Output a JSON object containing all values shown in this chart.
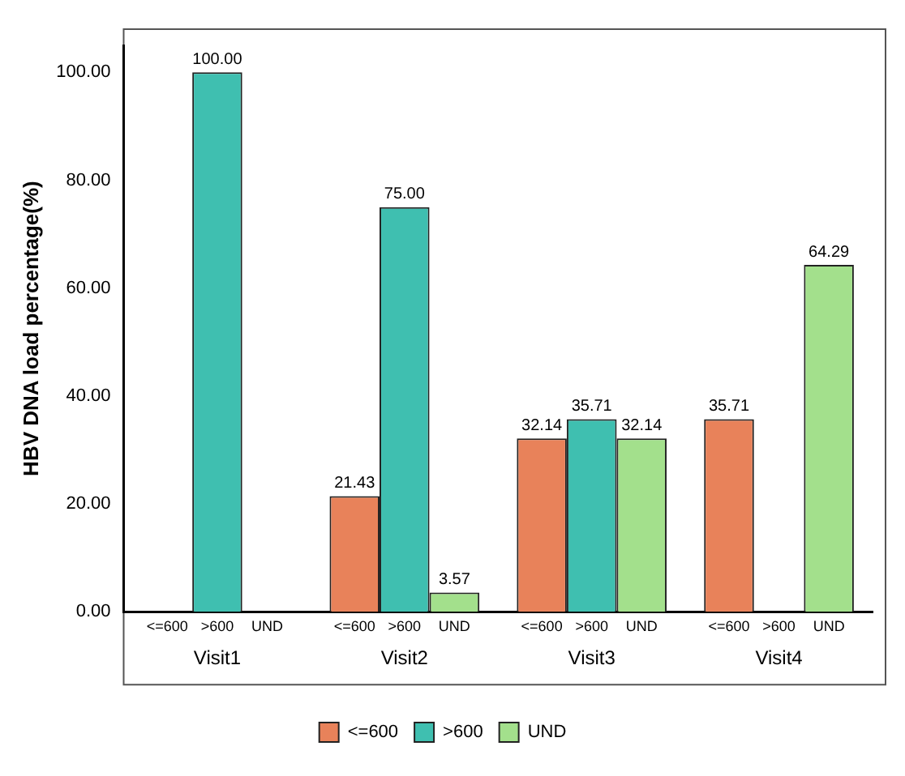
{
  "chart_data": {
    "type": "bar",
    "ylabel": "HBV DNA load percentage(%)",
    "categories": [
      "Visit1",
      "Visit2",
      "Visit3",
      "Visit4"
    ],
    "series": [
      {
        "name": "<=600",
        "color": "#e8825a",
        "values": [
          0,
          21.43,
          32.14,
          35.71
        ],
        "value_labels": [
          null,
          "21.43",
          "32.14",
          "35.71"
        ]
      },
      {
        "name": ">600",
        "color": "#3fbfb0",
        "values": [
          100,
          75,
          35.71,
          0
        ],
        "value_labels": [
          "100.00",
          "75.00",
          "35.71",
          null
        ]
      },
      {
        "name": "UND",
        "color": "#a3e08c",
        "values": [
          0,
          3.57,
          32.14,
          64.29
        ],
        "value_labels": [
          null,
          "3.57",
          "32.14",
          "64.29"
        ]
      }
    ],
    "ylim": [
      0,
      105
    ],
    "yticks": [
      {
        "value": 0,
        "label": "0.00"
      },
      {
        "value": 20,
        "label": "20.00"
      },
      {
        "value": 40,
        "label": "40.00"
      },
      {
        "value": 60,
        "label": "60.00"
      },
      {
        "value": 80,
        "label": "80.00"
      },
      {
        "value": 100,
        "label": "100.00"
      }
    ],
    "grid": false,
    "legend": "bottom"
  }
}
